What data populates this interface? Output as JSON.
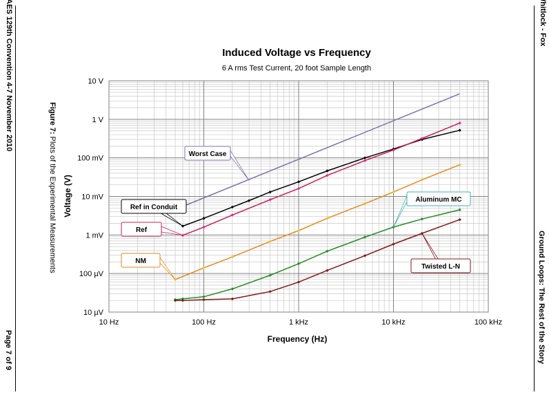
{
  "page": {
    "left_margin_top": "AES 129th Convention 4-7 November 2010",
    "left_margin_bottom": "Page 7 of 9",
    "right_margin_top": "Whitlock - Fox",
    "right_margin_bottom": "Ground Loops: The Rest of the Story",
    "figure_caption_bold": "Figure 7:",
    "figure_caption_text": " Plots of the Experimental Measurements"
  },
  "chart_data": {
    "type": "line",
    "title": "Induced Voltage vs Frequency",
    "subtitle": "6 A rms Test Current, 20 foot Sample Length",
    "xlabel": "Frequency (Hz)",
    "ylabel": "Voltage (V)",
    "xscale": "log",
    "yscale": "log",
    "xlim": [
      10,
      100000
    ],
    "ylim": [
      1e-05,
      10
    ],
    "grid": true,
    "x_ticks": [
      {
        "v": 10,
        "label": "10 Hz"
      },
      {
        "v": 100,
        "label": "100 Hz"
      },
      {
        "v": 1000,
        "label": "1 kHz"
      },
      {
        "v": 10000,
        "label": "10 kHz"
      },
      {
        "v": 100000,
        "label": "100 kHz"
      }
    ],
    "y_ticks": [
      {
        "v": 10,
        "label": "10 V"
      },
      {
        "v": 1,
        "label": "1 V"
      },
      {
        "v": 0.1,
        "label": "100 mV"
      },
      {
        "v": 0.01,
        "label": "10 mV"
      },
      {
        "v": 0.001,
        "label": "1 mV"
      },
      {
        "v": 0.0001,
        "label": "100 µV"
      },
      {
        "v": 1e-05,
        "label": "10 µV"
      }
    ],
    "series": [
      {
        "name": "Worst Case",
        "color": "#8070a8",
        "markers": false,
        "x": [
          60,
          50000
        ],
        "y": [
          0.0055,
          4.6
        ]
      },
      {
        "name": "Ref in Conduit",
        "color": "#000000",
        "markers": true,
        "x": [
          60,
          100,
          200,
          300,
          500,
          1000,
          2000,
          5000,
          10000,
          20000,
          50000
        ],
        "y": [
          0.0017,
          0.0027,
          0.0053,
          0.0078,
          0.013,
          0.024,
          0.046,
          0.1,
          0.17,
          0.3,
          0.52
        ]
      },
      {
        "name": "Ref",
        "color": "#c81e50",
        "markers": true,
        "x": [
          60,
          100,
          200,
          500,
          1000,
          2000,
          5000,
          10000,
          20000,
          50000
        ],
        "y": [
          0.00098,
          0.0016,
          0.0033,
          0.0082,
          0.016,
          0.035,
          0.085,
          0.16,
          0.32,
          0.8
        ],
        "marker_color": "#e0209a"
      },
      {
        "name": "NM",
        "color": "#e68a1c",
        "markers": true,
        "x": [
          50,
          100,
          200,
          500,
          1000,
          2000,
          5000,
          10000,
          20000,
          50000
        ],
        "y": [
          7e-05,
          0.00014,
          0.00027,
          0.00068,
          0.0013,
          0.0027,
          0.0065,
          0.013,
          0.027,
          0.066
        ],
        "marker_color": "#f0c020"
      },
      {
        "name": "Aluminum MC",
        "color": "#208a20",
        "markers": true,
        "x": [
          50,
          60,
          100,
          200,
          500,
          1000,
          2000,
          5000,
          10000,
          20000,
          50000
        ],
        "y": [
          2.1e-05,
          2.2e-05,
          2.5e-05,
          4e-05,
          9e-05,
          0.00018,
          0.00038,
          0.00088,
          0.0016,
          0.0026,
          0.0045
        ]
      },
      {
        "name": "Twisted L-N",
        "color": "#801818",
        "markers": true,
        "x": [
          50,
          60,
          100,
          200,
          500,
          1000,
          2000,
          5000,
          10000,
          20000,
          50000
        ],
        "y": [
          2e-05,
          2e-05,
          2.1e-05,
          2.2e-05,
          3.4e-05,
          6e-05,
          0.00012,
          0.00029,
          0.00058,
          0.0011,
          0.0025
        ]
      }
    ],
    "annotations": [
      {
        "label": "Worst Case",
        "border": "#8070a8",
        "target": [
          300,
          0.026
        ]
      },
      {
        "label": "Ref in Conduit",
        "border": "#000000",
        "target": [
          60,
          0.0017
        ]
      },
      {
        "label": "Ref",
        "border": "#c81e50",
        "target": [
          60,
          0.00098
        ]
      },
      {
        "label": "NM",
        "border": "#e68a1c",
        "target": [
          50,
          7e-05
        ]
      },
      {
        "label": "Aluminum MC",
        "border": "#40b0b0",
        "target": [
          10000,
          0.0016
        ]
      },
      {
        "label": "Twisted L-N",
        "border": "#801818",
        "target": [
          20000,
          0.0011
        ]
      }
    ]
  }
}
